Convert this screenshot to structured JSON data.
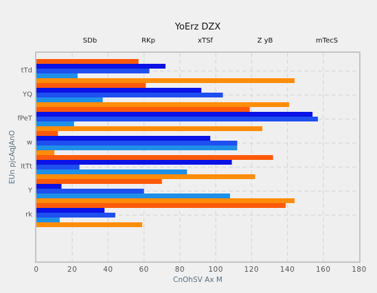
{
  "chart_data": {
    "type": "bar",
    "orientation": "horizontal",
    "title": "YoErz DZX",
    "xlabel": "CnOhSV Ax M",
    "ylabel": "EUn pjcAqJAnO",
    "xlim": [
      0,
      180
    ],
    "xticks": [
      0,
      20,
      40,
      60,
      80,
      100,
      120,
      140,
      160,
      180
    ],
    "grid": true,
    "legend_position": "top",
    "categories": [
      "tTd",
      "YQ",
      "fPeT",
      "w",
      "ltTt",
      "Y",
      "rk"
    ],
    "series": [
      {
        "name": "SDb",
        "color": "#ff5a0a",
        "values": [
          57,
          61,
          119,
          12,
          132,
          70,
          139
        ]
      },
      {
        "name": "RKp",
        "color": "#0b12e6",
        "values": [
          72,
          92,
          154,
          97,
          109,
          14,
          38
        ]
      },
      {
        "name": "xTSf",
        "color": "#1f4ff0",
        "values": [
          63,
          104,
          157,
          112,
          24,
          60,
          44
        ]
      },
      {
        "name": "Z yB",
        "color": "#1e90e8",
        "values": [
          23,
          37,
          21,
          112,
          84,
          108,
          13
        ]
      },
      {
        "name": "mTecS",
        "color": "#ff8c0a",
        "values": [
          144,
          141,
          126,
          10,
          122,
          144,
          59
        ]
      }
    ]
  }
}
